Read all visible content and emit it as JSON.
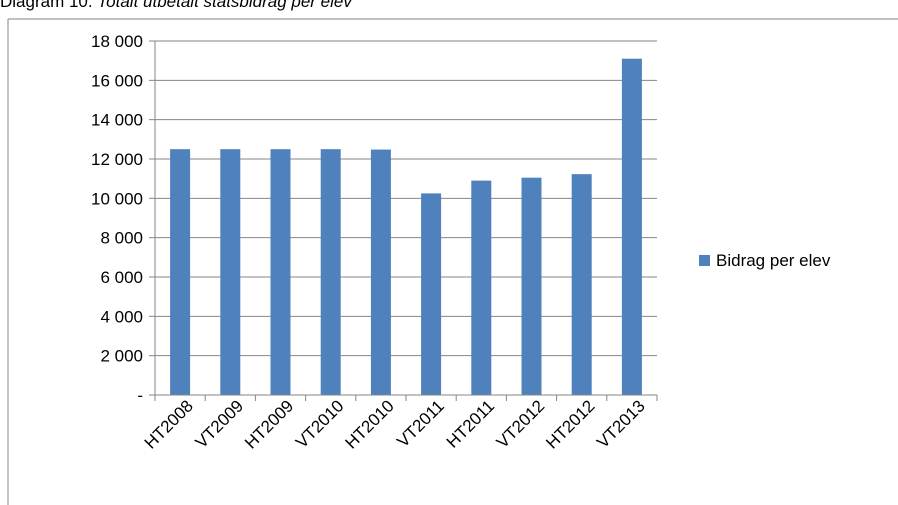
{
  "caption": {
    "prefix": "Diagram 10.",
    "title": "Totalt utbetalt statsbidrag per elev"
  },
  "colors": {
    "bar": "#4F81BD",
    "grid": "#868686",
    "frame": "#868686",
    "text": "#000000"
  },
  "chart_data": {
    "type": "bar",
    "categories": [
      "HT2008",
      "VT2009",
      "HT2009",
      "VT2010",
      "HT2010",
      "VT2011",
      "HT2011",
      "VT2012",
      "HT2012",
      "VT2013"
    ],
    "series": [
      {
        "name": "Bidrag per elev",
        "values": [
          12500,
          12500,
          12500,
          12500,
          12480,
          10250,
          10900,
          11050,
          11230,
          17100
        ]
      }
    ],
    "ylim": [
      0,
      18000
    ],
    "yticks": [
      0,
      2000,
      4000,
      6000,
      8000,
      10000,
      12000,
      14000,
      16000,
      18000
    ],
    "ytick_labels": [
      "-",
      "2 000",
      "4 000",
      "6 000",
      "8 000",
      "10 000",
      "12 000",
      "14 000",
      "16 000",
      "18 000"
    ],
    "xlabel": "",
    "ylabel": "",
    "grid": true,
    "legend_position": "right"
  }
}
